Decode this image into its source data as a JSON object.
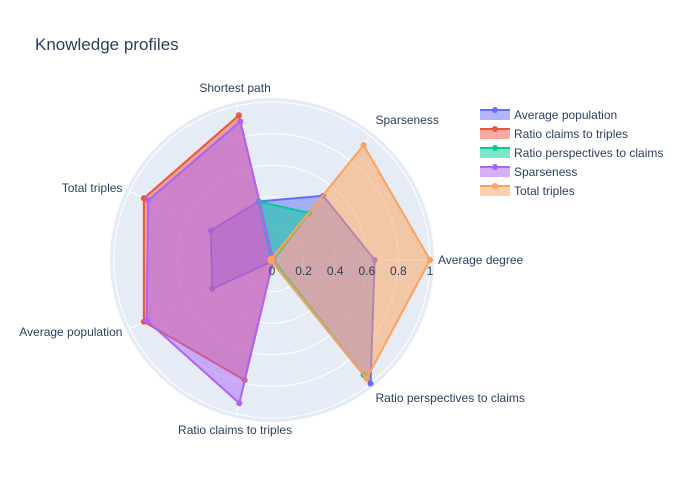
{
  "chart_data": {
    "type": "radar",
    "title": "Knowledge profiles",
    "axes": [
      "Average degree",
      "Sparseness",
      "Shortest path",
      "Total triples",
      "Average population",
      "Ratio claims to triples",
      "Ratio perspectives to claims"
    ],
    "radial_range": [
      0,
      1
    ],
    "radial_ticks": [
      "0",
      "0.2",
      "0.4",
      "0.6",
      "0.8",
      "1"
    ],
    "radial_tick_values": [
      0,
      0.2,
      0.4,
      0.6,
      0.8,
      1
    ],
    "grid": true,
    "legend_position": "top-right",
    "series": [
      {
        "name": "Average population",
        "color": "#636efa",
        "values": [
          0.65,
          0.52,
          0.38,
          0.43,
          0.42,
          0.01,
          1.0
        ]
      },
      {
        "name": "Ratio claims to triples",
        "color": "#ef553b",
        "values": [
          0.01,
          0.01,
          0.94,
          0.9,
          0.9,
          0.78,
          0.01
        ]
      },
      {
        "name": "Ratio perspectives to claims",
        "color": "#00cc96",
        "values": [
          0.01,
          0.38,
          0.38,
          0.01,
          0.01,
          0.01,
          0.93
        ]
      },
      {
        "name": "Sparseness",
        "color": "#ab63fa",
        "values": [
          0.01,
          0.01,
          0.9,
          0.87,
          0.88,
          0.93,
          0.01
        ]
      },
      {
        "name": "Total triples",
        "color": "#ffa15a",
        "values": [
          1.0,
          0.93,
          0.01,
          0.01,
          0.01,
          0.01,
          0.96
        ]
      }
    ]
  }
}
